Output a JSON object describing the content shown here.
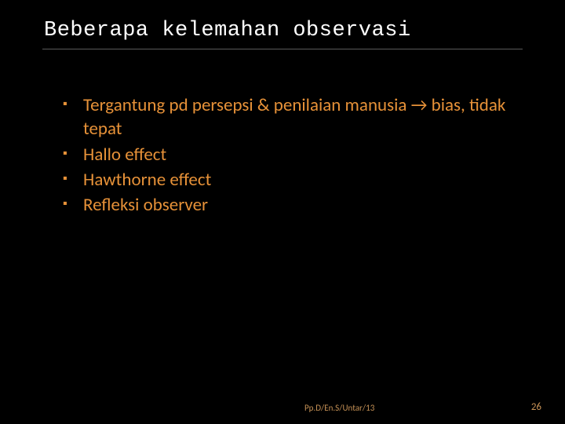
{
  "slide": {
    "title": "Beberapa kelemahan observasi",
    "title_fontsize": 27,
    "title_color": "#ffffff",
    "title_font_family": "Consolas, monospace",
    "underline_color": "#5a5a5a",
    "background_color": "#000000",
    "bullets": [
      "Tergantung pd persepsi & penilaian manusia → bias, tidak tepat",
      "Hallo effect",
      "Hawthorne effect",
      "Refleksi observer"
    ],
    "bullet_color": "#e69138",
    "bullet_fontsize": 23,
    "bullet_marker": "▪",
    "footer": {
      "reference": "Pp.D/En.S/Untar/13",
      "page_number": "26",
      "color": "#c79256",
      "ref_fontsize": 11,
      "page_fontsize": 13
    }
  }
}
